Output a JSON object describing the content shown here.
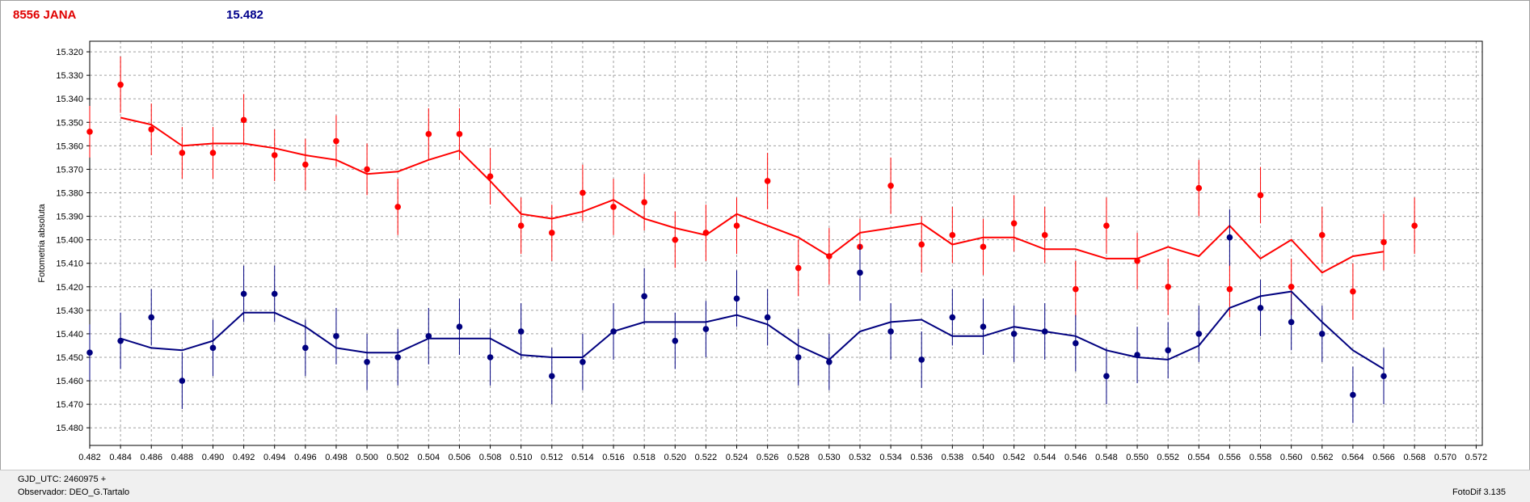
{
  "header": {
    "object_name": "8556 JANA",
    "magnitude": "15.482"
  },
  "footer": {
    "gjd": "GJD_UTC: 2460975 +",
    "observer": "Observador: DEO_G.Tartalo",
    "software": "FotoDif 3.135"
  },
  "colors": {
    "series_red": "#ff0000",
    "series_blue": "#00007f",
    "grid": "#a0a0a0"
  },
  "chart_data": {
    "type": "scatter",
    "ylabel": "Fotometria absoluta",
    "xlabel": "",
    "xlim": [
      0.482,
      0.5724
    ],
    "ylim": [
      15.3155,
      15.4875
    ],
    "y_inverted": true,
    "grid": true,
    "x_ticks": [
      "0.482",
      "0.484",
      "0.486",
      "0.488",
      "0.490",
      "0.492",
      "0.494",
      "0.496",
      "0.498",
      "0.500",
      "0.502",
      "0.504",
      "0.506",
      "0.508",
      "0.510",
      "0.512",
      "0.514",
      "0.516",
      "0.518",
      "0.520",
      "0.522",
      "0.524",
      "0.526",
      "0.528",
      "0.530",
      "0.532",
      "0.534",
      "0.536",
      "0.538",
      "0.540",
      "0.542",
      "0.544",
      "0.546",
      "0.548",
      "0.550",
      "0.552",
      "0.554",
      "0.556",
      "0.558",
      "0.560",
      "0.562",
      "0.564",
      "0.566",
      "0.568",
      "0.570",
      "0.572"
    ],
    "y_ticks": [
      "15.320",
      "15.330",
      "15.340",
      "15.350",
      "15.360",
      "15.370",
      "15.380",
      "15.390",
      "15.400",
      "15.410",
      "15.420",
      "15.430",
      "15.440",
      "15.450",
      "15.460",
      "15.470",
      "15.480"
    ],
    "series": [
      {
        "color": "#ff0000",
        "points": [
          [
            0.482,
            15.354,
            0.011
          ],
          [
            0.484,
            15.334,
            0.012
          ],
          [
            0.486,
            15.353,
            0.011
          ],
          [
            0.488,
            15.363,
            0.011
          ],
          [
            0.49,
            15.363,
            0.011
          ],
          [
            0.492,
            15.349,
            0.011
          ],
          [
            0.494,
            15.364,
            0.011
          ],
          [
            0.496,
            15.368,
            0.011
          ],
          [
            0.498,
            15.358,
            0.011
          ],
          [
            0.5,
            15.37,
            0.011
          ],
          [
            0.502,
            15.386,
            0.012
          ],
          [
            0.504,
            15.355,
            0.011
          ],
          [
            0.506,
            15.355,
            0.011
          ],
          [
            0.508,
            15.373,
            0.012
          ],
          [
            0.51,
            15.394,
            0.012
          ],
          [
            0.512,
            15.397,
            0.012
          ],
          [
            0.514,
            15.38,
            0.012
          ],
          [
            0.516,
            15.386,
            0.012
          ],
          [
            0.518,
            15.384,
            0.012
          ],
          [
            0.52,
            15.4,
            0.012
          ],
          [
            0.522,
            15.397,
            0.012
          ],
          [
            0.524,
            15.394,
            0.012
          ],
          [
            0.526,
            15.375,
            0.012
          ],
          [
            0.528,
            15.412,
            0.012
          ],
          [
            0.53,
            15.407,
            0.012
          ],
          [
            0.532,
            15.403,
            0.012
          ],
          [
            0.534,
            15.377,
            0.012
          ],
          [
            0.536,
            15.402,
            0.012
          ],
          [
            0.538,
            15.398,
            0.012
          ],
          [
            0.54,
            15.403,
            0.012
          ],
          [
            0.542,
            15.393,
            0.012
          ],
          [
            0.544,
            15.398,
            0.012
          ],
          [
            0.546,
            15.421,
            0.012
          ],
          [
            0.548,
            15.394,
            0.012
          ],
          [
            0.55,
            15.409,
            0.012
          ],
          [
            0.552,
            15.42,
            0.012
          ],
          [
            0.554,
            15.378,
            0.012
          ],
          [
            0.556,
            15.421,
            0.012
          ],
          [
            0.558,
            15.381,
            0.012
          ],
          [
            0.56,
            15.42,
            0.012
          ],
          [
            0.562,
            15.398,
            0.012
          ],
          [
            0.564,
            15.422,
            0.012
          ],
          [
            0.566,
            15.401,
            0.012
          ],
          [
            0.568,
            15.394,
            0.012
          ]
        ],
        "line": [
          [
            0.484,
            15.348
          ],
          [
            0.486,
            15.351
          ],
          [
            0.488,
            15.36
          ],
          [
            0.49,
            15.359
          ],
          [
            0.492,
            15.359
          ],
          [
            0.494,
            15.361
          ],
          [
            0.496,
            15.364
          ],
          [
            0.498,
            15.366
          ],
          [
            0.5,
            15.372
          ],
          [
            0.502,
            15.371
          ],
          [
            0.504,
            15.366
          ],
          [
            0.506,
            15.362
          ],
          [
            0.508,
            15.375
          ],
          [
            0.51,
            15.389
          ],
          [
            0.512,
            15.391
          ],
          [
            0.514,
            15.388
          ],
          [
            0.516,
            15.383
          ],
          [
            0.518,
            15.391
          ],
          [
            0.52,
            15.395
          ],
          [
            0.522,
            15.398
          ],
          [
            0.524,
            15.389
          ],
          [
            0.526,
            15.394
          ],
          [
            0.528,
            15.399
          ],
          [
            0.53,
            15.407
          ],
          [
            0.532,
            15.397
          ],
          [
            0.534,
            15.395
          ],
          [
            0.536,
            15.393
          ],
          [
            0.538,
            15.402
          ],
          [
            0.54,
            15.399
          ],
          [
            0.542,
            15.399
          ],
          [
            0.544,
            15.404
          ],
          [
            0.546,
            15.404
          ],
          [
            0.548,
            15.408
          ],
          [
            0.55,
            15.408
          ],
          [
            0.552,
            15.403
          ],
          [
            0.554,
            15.407
          ],
          [
            0.556,
            15.394
          ],
          [
            0.558,
            15.408
          ],
          [
            0.56,
            15.4
          ],
          [
            0.562,
            15.414
          ],
          [
            0.564,
            15.407
          ],
          [
            0.566,
            15.405
          ]
        ]
      },
      {
        "color": "#00007f",
        "points": [
          [
            0.482,
            15.448,
            0.012
          ],
          [
            0.484,
            15.443,
            0.012
          ],
          [
            0.486,
            15.433,
            0.012
          ],
          [
            0.488,
            15.46,
            0.012
          ],
          [
            0.49,
            15.446,
            0.012
          ],
          [
            0.492,
            15.423,
            0.012
          ],
          [
            0.494,
            15.423,
            0.012
          ],
          [
            0.496,
            15.446,
            0.012
          ],
          [
            0.498,
            15.441,
            0.012
          ],
          [
            0.5,
            15.452,
            0.012
          ],
          [
            0.502,
            15.45,
            0.012
          ],
          [
            0.504,
            15.441,
            0.012
          ],
          [
            0.506,
            15.437,
            0.012
          ],
          [
            0.508,
            15.45,
            0.012
          ],
          [
            0.51,
            15.439,
            0.012
          ],
          [
            0.512,
            15.458,
            0.012
          ],
          [
            0.514,
            15.452,
            0.012
          ],
          [
            0.516,
            15.439,
            0.012
          ],
          [
            0.518,
            15.424,
            0.012
          ],
          [
            0.52,
            15.443,
            0.012
          ],
          [
            0.522,
            15.438,
            0.012
          ],
          [
            0.524,
            15.425,
            0.012
          ],
          [
            0.526,
            15.433,
            0.012
          ],
          [
            0.528,
            15.45,
            0.012
          ],
          [
            0.53,
            15.452,
            0.012
          ],
          [
            0.532,
            15.414,
            0.012
          ],
          [
            0.534,
            15.439,
            0.012
          ],
          [
            0.536,
            15.451,
            0.012
          ],
          [
            0.538,
            15.433,
            0.012
          ],
          [
            0.54,
            15.437,
            0.012
          ],
          [
            0.542,
            15.44,
            0.012
          ],
          [
            0.544,
            15.439,
            0.012
          ],
          [
            0.546,
            15.444,
            0.012
          ],
          [
            0.548,
            15.458,
            0.012
          ],
          [
            0.55,
            15.449,
            0.012
          ],
          [
            0.552,
            15.447,
            0.012
          ],
          [
            0.554,
            15.44,
            0.012
          ],
          [
            0.556,
            15.399,
            0.012
          ],
          [
            0.558,
            15.429,
            0.012
          ],
          [
            0.56,
            15.435,
            0.012
          ],
          [
            0.562,
            15.44,
            0.012
          ],
          [
            0.564,
            15.466,
            0.012
          ],
          [
            0.566,
            15.458,
            0.012
          ]
        ],
        "line": [
          [
            0.484,
            15.442
          ],
          [
            0.486,
            15.446
          ],
          [
            0.488,
            15.447
          ],
          [
            0.49,
            15.443
          ],
          [
            0.492,
            15.431
          ],
          [
            0.494,
            15.431
          ],
          [
            0.496,
            15.437
          ],
          [
            0.498,
            15.446
          ],
          [
            0.5,
            15.448
          ],
          [
            0.502,
            15.448
          ],
          [
            0.504,
            15.442
          ],
          [
            0.506,
            15.442
          ],
          [
            0.508,
            15.442
          ],
          [
            0.51,
            15.449
          ],
          [
            0.512,
            15.45
          ],
          [
            0.514,
            15.45
          ],
          [
            0.516,
            15.439
          ],
          [
            0.518,
            15.435
          ],
          [
            0.52,
            15.435
          ],
          [
            0.522,
            15.435
          ],
          [
            0.524,
            15.432
          ],
          [
            0.526,
            15.436
          ],
          [
            0.528,
            15.445
          ],
          [
            0.53,
            15.451
          ],
          [
            0.532,
            15.439
          ],
          [
            0.534,
            15.435
          ],
          [
            0.536,
            15.434
          ],
          [
            0.538,
            15.441
          ],
          [
            0.54,
            15.441
          ],
          [
            0.542,
            15.437
          ],
          [
            0.544,
            15.439
          ],
          [
            0.546,
            15.441
          ],
          [
            0.548,
            15.447
          ],
          [
            0.55,
            15.45
          ],
          [
            0.552,
            15.451
          ],
          [
            0.554,
            15.445
          ],
          [
            0.556,
            15.429
          ],
          [
            0.558,
            15.424
          ],
          [
            0.56,
            15.422
          ],
          [
            0.562,
            15.435
          ],
          [
            0.564,
            15.447
          ],
          [
            0.566,
            15.455
          ]
        ]
      }
    ]
  }
}
